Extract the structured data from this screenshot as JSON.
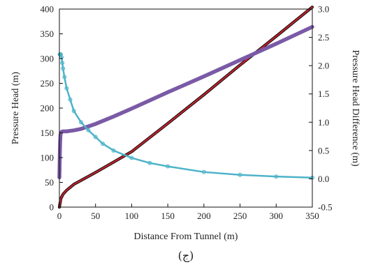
{
  "caption": "(ج)",
  "chart_data": {
    "type": "line",
    "xlabel": "Distance From Tunnel (m)",
    "ylabel_left": "Pressure Head (m)",
    "ylabel_right": "Pressure Head Difference (m)",
    "xlim": [
      0,
      350
    ],
    "ylim_left": [
      0,
      400
    ],
    "ylim_right": [
      -0.5,
      3.0
    ],
    "x_ticks": [
      "0",
      "50",
      "100",
      "150",
      "200",
      "250",
      "300",
      "350"
    ],
    "y_left_ticks": [
      "0",
      "50",
      "100",
      "150",
      "200",
      "250",
      "300",
      "350",
      "400"
    ],
    "y_right_ticks": [
      "-0.5",
      "0.0",
      "0.5",
      "1.0",
      "1.5",
      "2.0",
      "2.5",
      "3.0"
    ],
    "grid": false,
    "series": [
      {
        "color": "#0a0a0a",
        "axis": "left",
        "x": [
          0,
          2,
          5,
          10,
          20,
          30,
          50,
          75,
          100,
          150,
          200,
          250,
          300,
          350
        ],
        "y": [
          0,
          17,
          26,
          34,
          46,
          54,
          70,
          91,
          112,
          169,
          227,
          287,
          345,
          404
        ]
      },
      {
        "color": "#c4222e",
        "axis": "left",
        "x": [
          0,
          2,
          5,
          10,
          20,
          30,
          50,
          75,
          100,
          150,
          200,
          250,
          300,
          350
        ],
        "y": [
          0,
          17,
          26,
          34,
          46,
          54,
          70,
          91,
          112,
          169,
          227,
          287,
          345,
          404
        ]
      },
      {
        "color": "#7a5aa6",
        "axis": "left",
        "x": [
          0,
          0.5,
          1,
          1.5,
          2,
          3,
          5,
          10,
          20,
          30,
          50,
          75,
          100,
          150,
          200,
          250,
          300,
          350
        ],
        "y": [
          60,
          100,
          130,
          145,
          150,
          152,
          153,
          153,
          155,
          158,
          168,
          183,
          199,
          232,
          264,
          297,
          330,
          364
        ]
      },
      {
        "color": "#4db3c9",
        "axis": "right",
        "x": [
          0.5,
          1,
          2,
          3,
          4,
          5,
          7,
          10,
          15,
          20,
          30,
          40,
          50,
          60,
          75,
          100,
          125,
          150,
          200,
          250,
          300,
          350
        ],
        "y": [
          2.2,
          2.2,
          2.2,
          2.15,
          2.05,
          1.95,
          1.8,
          1.6,
          1.4,
          1.2,
          1.0,
          0.86,
          0.74,
          0.62,
          0.5,
          0.37,
          0.28,
          0.22,
          0.12,
          0.07,
          0.04,
          0.02
        ]
      }
    ]
  }
}
